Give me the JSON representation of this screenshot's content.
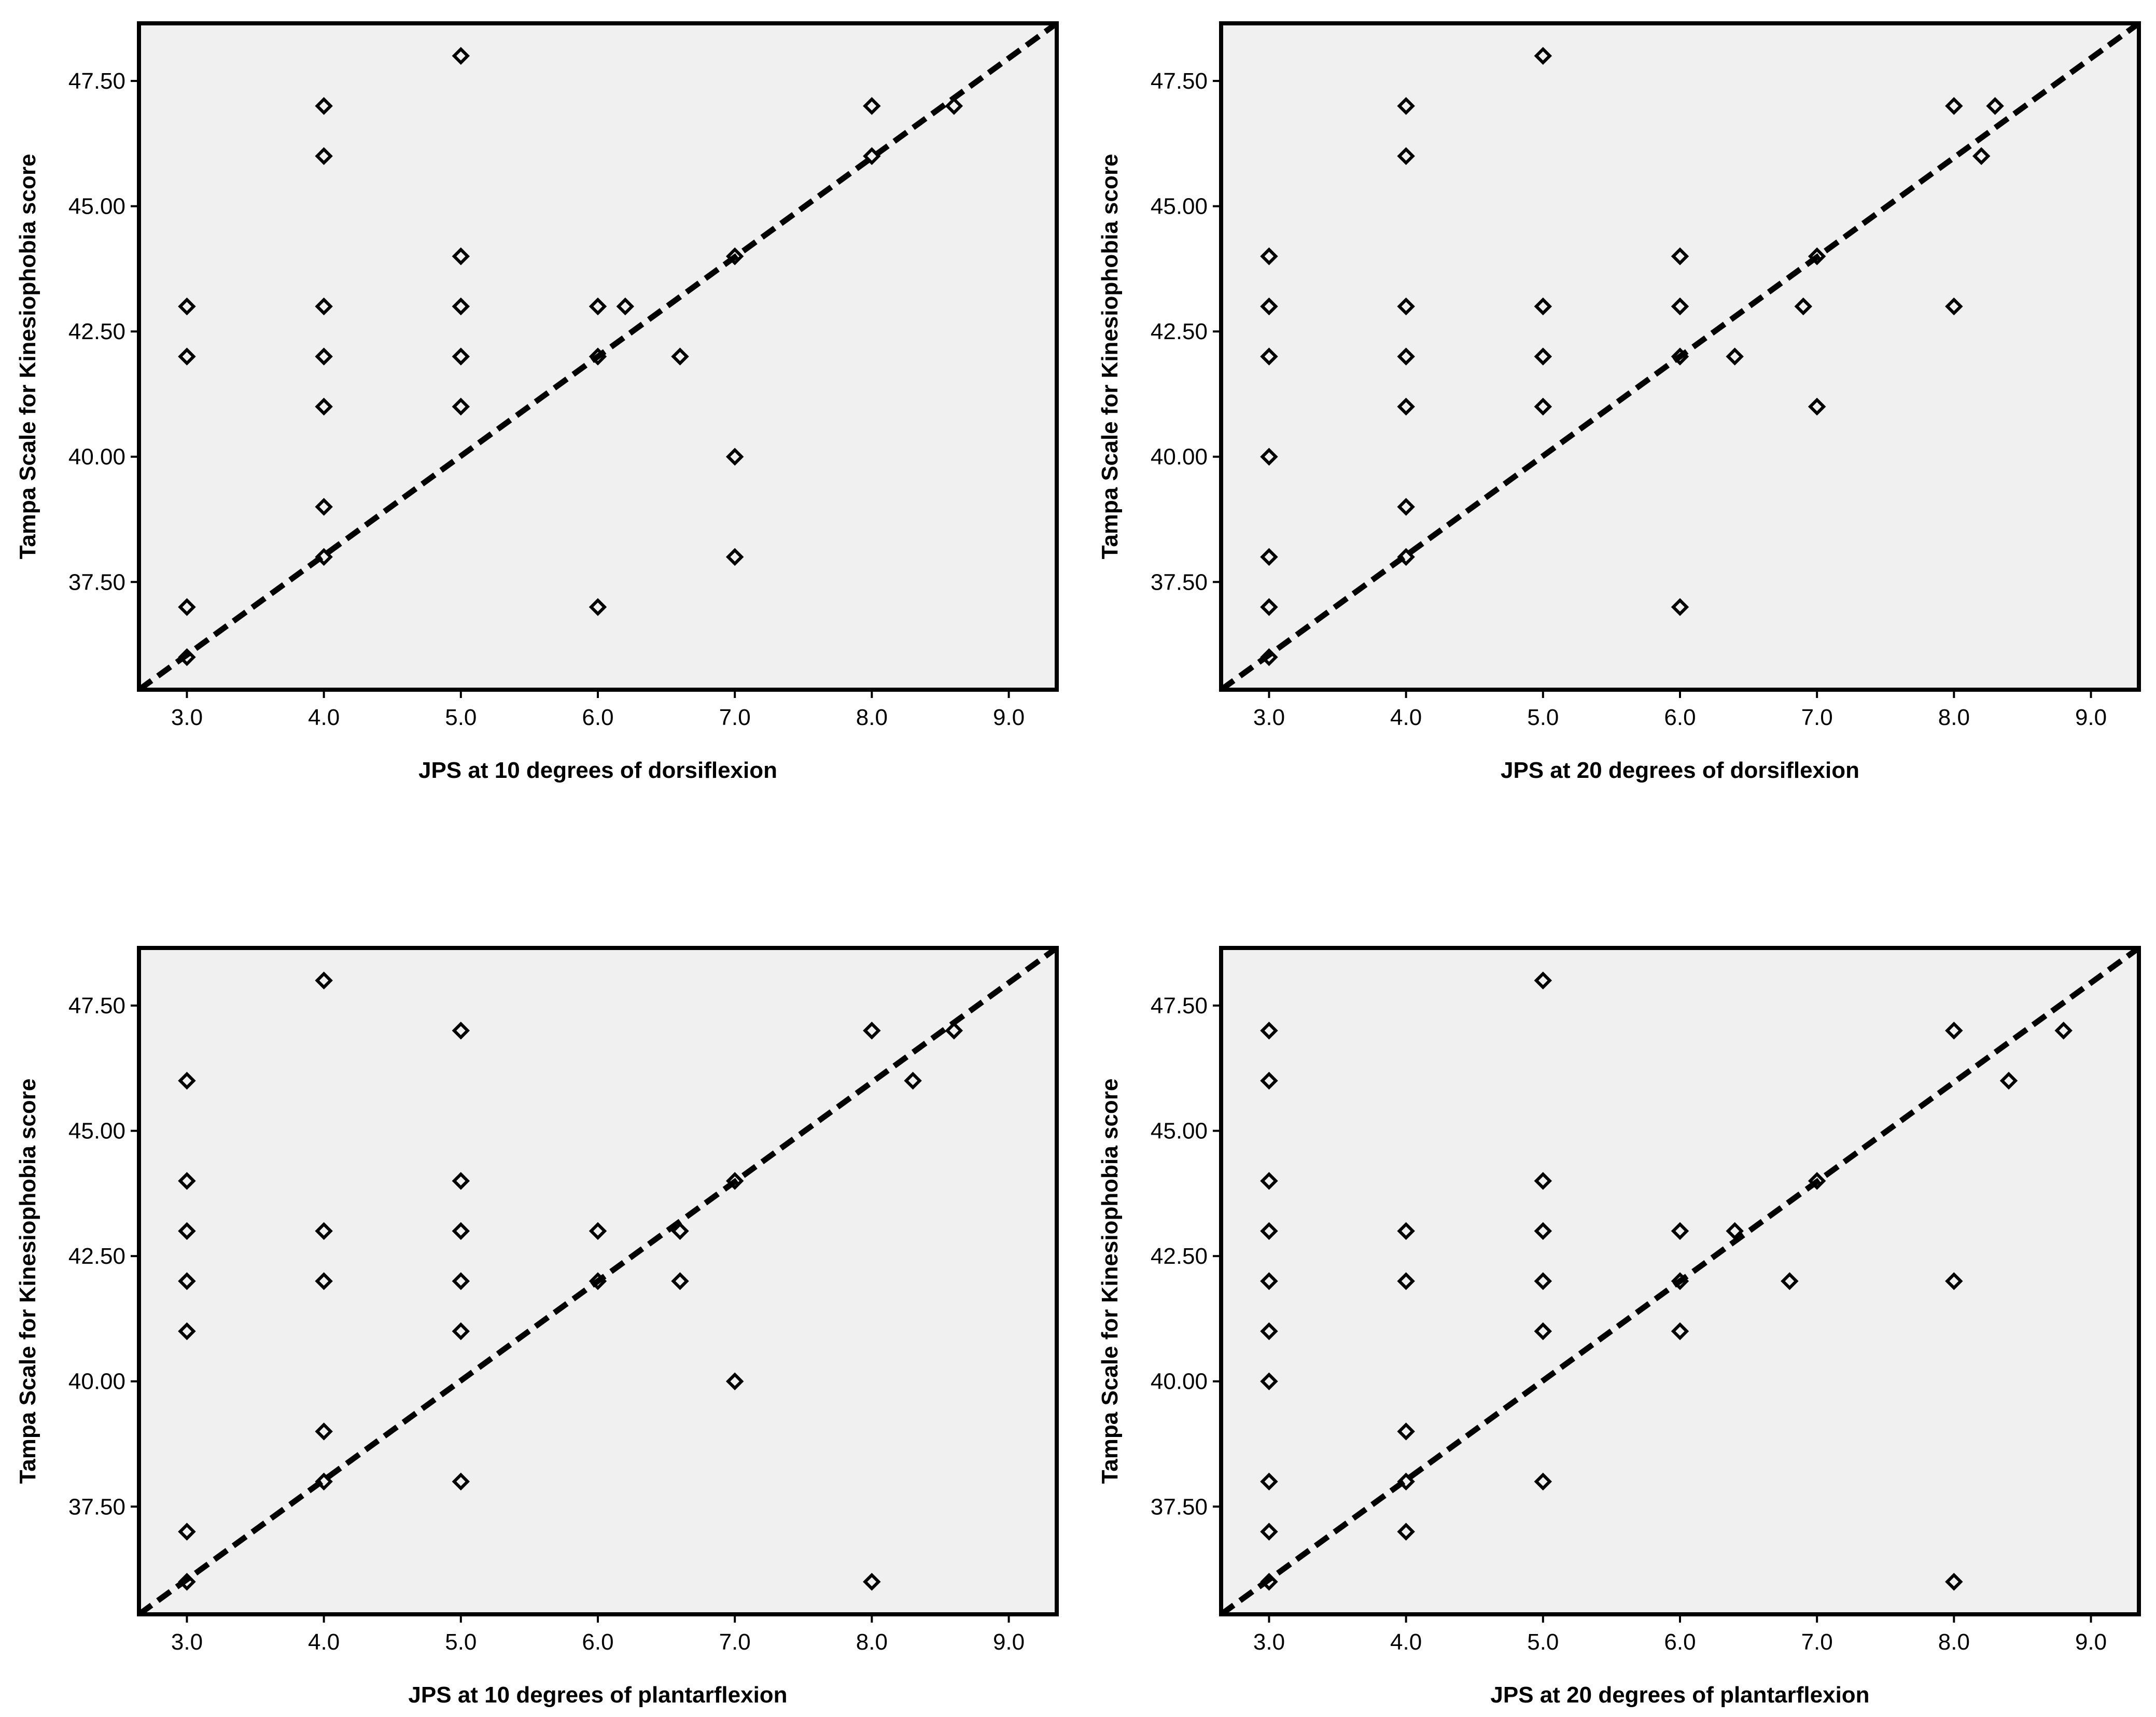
{
  "chart_data": [
    {
      "type": "scatter",
      "title": "",
      "xlabel": "JPS at 10 degrees of dorsiflexion",
      "ylabel": "Tampa Scale for Kinesiophobia score",
      "xlim": [
        2.65,
        9.35
      ],
      "ylim": [
        35.35,
        48.65
      ],
      "xticks": [
        "3.0",
        "4.0",
        "5.0",
        "6.0",
        "7.0",
        "8.0",
        "9.0"
      ],
      "yticks": [
        "37.50",
        "40.00",
        "42.50",
        "45.00",
        "47.50"
      ],
      "grid": false,
      "reference_line": "dashed diagonal",
      "points": [
        [
          3,
          43
        ],
        [
          3,
          42
        ],
        [
          3,
          37
        ],
        [
          3,
          36
        ],
        [
          4,
          47
        ],
        [
          4,
          46
        ],
        [
          4,
          43
        ],
        [
          4,
          42
        ],
        [
          4,
          41
        ],
        [
          4,
          39
        ],
        [
          4,
          38
        ],
        [
          5,
          48
        ],
        [
          5,
          44
        ],
        [
          5,
          43
        ],
        [
          5,
          42
        ],
        [
          5,
          41
        ],
        [
          6,
          43
        ],
        [
          6.2,
          43
        ],
        [
          6,
          42
        ],
        [
          6.6,
          42
        ],
        [
          6,
          37
        ],
        [
          7,
          44
        ],
        [
          7,
          40
        ],
        [
          7,
          38
        ],
        [
          8,
          47
        ],
        [
          8,
          46
        ],
        [
          8.6,
          47
        ]
      ]
    },
    {
      "type": "scatter",
      "title": "",
      "xlabel": "JPS at 20 degrees of dorsiflexion",
      "ylabel": "Tampa Scale for Kinesiophobia score",
      "xlim": [
        2.65,
        9.35
      ],
      "ylim": [
        35.35,
        48.65
      ],
      "xticks": [
        "3.0",
        "4.0",
        "5.0",
        "6.0",
        "7.0",
        "8.0",
        "9.0"
      ],
      "yticks": [
        "37.50",
        "40.00",
        "42.50",
        "45.00",
        "47.50"
      ],
      "grid": false,
      "reference_line": "dashed diagonal",
      "points": [
        [
          3,
          44
        ],
        [
          3,
          43
        ],
        [
          3,
          42
        ],
        [
          3,
          40
        ],
        [
          3,
          38
        ],
        [
          3,
          37
        ],
        [
          3,
          36
        ],
        [
          4,
          47
        ],
        [
          4,
          46
        ],
        [
          4,
          43
        ],
        [
          4,
          42
        ],
        [
          4,
          41
        ],
        [
          4,
          39
        ],
        [
          4,
          38
        ],
        [
          5,
          48
        ],
        [
          5,
          43
        ],
        [
          5,
          42
        ],
        [
          5,
          41
        ],
        [
          6,
          44
        ],
        [
          6,
          43
        ],
        [
          6,
          42
        ],
        [
          6.4,
          42
        ],
        [
          6,
          37
        ],
        [
          6.9,
          43
        ],
        [
          7,
          44
        ],
        [
          7,
          41
        ],
        [
          8,
          47
        ],
        [
          8.3,
          47
        ],
        [
          8.2,
          46
        ],
        [
          8,
          43
        ]
      ]
    },
    {
      "type": "scatter",
      "title": "",
      "xlabel": "JPS at 10 degrees of plantarflexion",
      "ylabel": "Tampa Scale for Kinesiophobia score",
      "xlim": [
        2.65,
        9.35
      ],
      "ylim": [
        35.35,
        48.65
      ],
      "xticks": [
        "3.0",
        "4.0",
        "5.0",
        "6.0",
        "7.0",
        "8.0",
        "9.0"
      ],
      "yticks": [
        "37.50",
        "40.00",
        "42.50",
        "45.00",
        "47.50"
      ],
      "grid": false,
      "reference_line": "dashed diagonal",
      "points": [
        [
          3,
          46
        ],
        [
          3,
          44
        ],
        [
          3,
          43
        ],
        [
          3,
          42
        ],
        [
          3,
          41
        ],
        [
          3,
          37
        ],
        [
          3,
          36
        ],
        [
          4,
          48
        ],
        [
          4,
          43
        ],
        [
          4,
          42
        ],
        [
          4,
          39
        ],
        [
          4,
          38
        ],
        [
          5,
          47
        ],
        [
          5,
          44
        ],
        [
          5,
          43
        ],
        [
          5,
          42
        ],
        [
          5,
          41
        ],
        [
          5,
          38
        ],
        [
          6,
          43
        ],
        [
          6,
          42
        ],
        [
          6.6,
          43
        ],
        [
          6.6,
          42
        ],
        [
          7,
          44
        ],
        [
          7,
          40
        ],
        [
          8,
          47
        ],
        [
          8.3,
          46
        ],
        [
          8.6,
          47
        ],
        [
          8,
          36
        ]
      ]
    },
    {
      "type": "scatter",
      "title": "",
      "xlabel": "JPS at 20 degrees of plantarflexion",
      "ylabel": "Tampa Scale for Kinesiophobia score",
      "xlim": [
        2.65,
        9.35
      ],
      "ylim": [
        35.35,
        48.65
      ],
      "xticks": [
        "3.0",
        "4.0",
        "5.0",
        "6.0",
        "7.0",
        "8.0",
        "9.0"
      ],
      "yticks": [
        "37.50",
        "40.00",
        "42.50",
        "45.00",
        "47.50"
      ],
      "grid": false,
      "reference_line": "dashed diagonal",
      "points": [
        [
          3,
          47
        ],
        [
          3,
          46
        ],
        [
          3,
          44
        ],
        [
          3,
          43
        ],
        [
          3,
          42
        ],
        [
          3,
          41
        ],
        [
          3,
          40
        ],
        [
          3,
          38
        ],
        [
          3,
          37
        ],
        [
          3,
          36
        ],
        [
          4,
          43
        ],
        [
          4,
          42
        ],
        [
          4,
          39
        ],
        [
          4,
          38
        ],
        [
          4,
          37
        ],
        [
          5,
          48
        ],
        [
          5,
          44
        ],
        [
          5,
          43
        ],
        [
          5,
          42
        ],
        [
          5,
          41
        ],
        [
          5,
          38
        ],
        [
          6,
          43
        ],
        [
          6,
          42
        ],
        [
          6,
          41
        ],
        [
          6.4,
          43
        ],
        [
          6.8,
          42
        ],
        [
          7,
          44
        ],
        [
          8,
          47
        ],
        [
          8,
          42
        ],
        [
          8,
          36
        ],
        [
          8.4,
          46
        ],
        [
          8.8,
          47
        ]
      ]
    }
  ]
}
